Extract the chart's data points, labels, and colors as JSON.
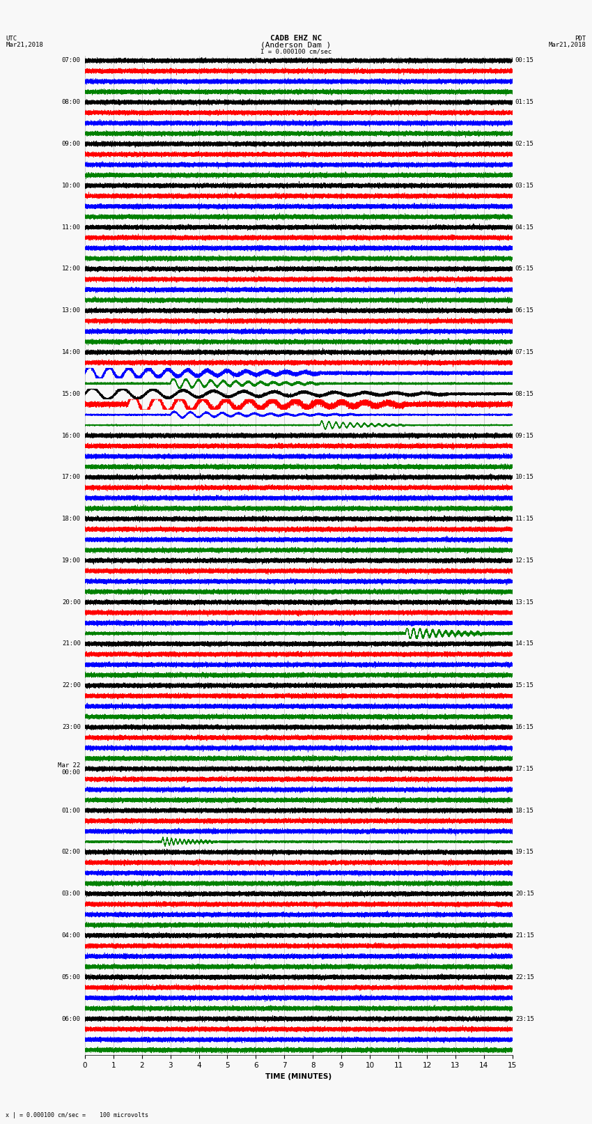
{
  "title_line1": "CADB EHZ NC",
  "title_line2": "(Anderson Dam )",
  "scale_label": "I = 0.000100 cm/sec",
  "left_header_line1": "UTC",
  "left_header_line2": "Mar21,2018",
  "right_header_line1": "PDT",
  "right_header_line2": "Mar21,2018",
  "xlabel": "TIME (MINUTES)",
  "footer": "x | = 0.000100 cm/sec =    100 microvolts",
  "x_min": 0,
  "x_max": 15,
  "x_ticks": [
    0,
    1,
    2,
    3,
    4,
    5,
    6,
    7,
    8,
    9,
    10,
    11,
    12,
    13,
    14,
    15
  ],
  "background_color": "#f0f0f0",
  "trace_colors": [
    "black",
    "red",
    "blue",
    "green"
  ],
  "left_labels": [
    "07:00",
    "08:00",
    "09:00",
    "10:00",
    "11:00",
    "12:00",
    "13:00",
    "14:00",
    "15:00",
    "16:00",
    "17:00",
    "18:00",
    "19:00",
    "20:00",
    "21:00",
    "22:00",
    "23:00",
    "Mar 22\n00:00",
    "01:00",
    "02:00",
    "03:00",
    "04:00",
    "05:00",
    "06:00"
  ],
  "right_labels": [
    "00:15",
    "01:15",
    "02:15",
    "03:15",
    "04:15",
    "05:15",
    "06:15",
    "07:15",
    "08:15",
    "09:15",
    "10:15",
    "11:15",
    "12:15",
    "13:15",
    "14:15",
    "15:15",
    "16:15",
    "17:15",
    "18:15",
    "19:15",
    "20:15",
    "21:15",
    "22:15",
    "23:15"
  ],
  "n_rows": 96,
  "n_minutes": 15,
  "sample_rate": 50,
  "noise_amp": 0.12,
  "title_fontsize": 8,
  "label_fontsize": 6.5,
  "axis_fontsize": 7.5,
  "special_rows": {
    "30": {
      "amp": 0.8,
      "event": true,
      "es": 0.0,
      "el": 0.55,
      "ea": 0.7
    },
    "31": {
      "amp": 0.5,
      "event": true,
      "es": 0.2,
      "el": 0.35,
      "ea": 0.5
    },
    "32": {
      "amp": 0.6,
      "event": true,
      "es": 0.0,
      "el": 0.85,
      "ea": 0.6
    },
    "33": {
      "amp": 1.2,
      "event": true,
      "es": 0.1,
      "el": 0.65,
      "ea": 1.0
    },
    "34": {
      "amp": 0.4,
      "event": true,
      "es": 0.2,
      "el": 0.45,
      "ea": 0.3
    },
    "35": {
      "amp": 0.35,
      "event": true,
      "es": 0.55,
      "el": 0.2,
      "ea": 0.4
    },
    "55": {
      "amp": 0.7,
      "event": true,
      "es": 0.75,
      "el": 0.18,
      "ea": 0.6
    },
    "75": {
      "amp": 0.5,
      "event": true,
      "es": 0.18,
      "el": 0.12,
      "ea": 0.4
    }
  }
}
